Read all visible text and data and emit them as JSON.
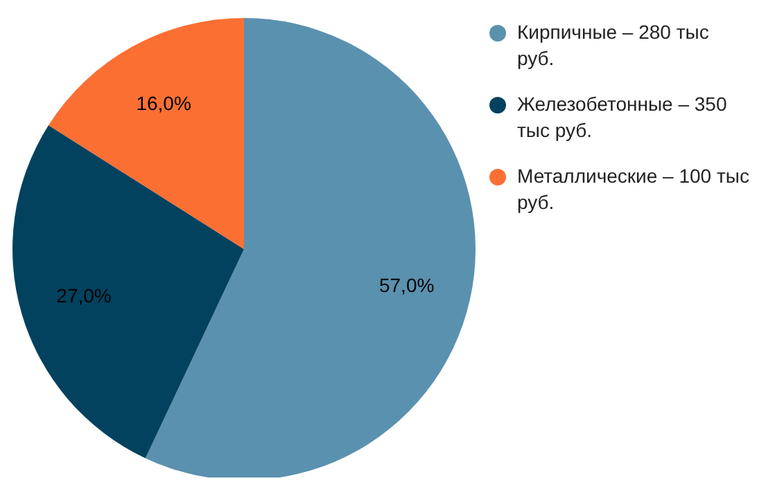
{
  "chart_data": {
    "type": "pie",
    "categories": [
      "Кирпичные – 280 тыс руб.",
      "Железобетонные – 350 тыс руб.",
      "Металлические – 100 тыс руб."
    ],
    "values": [
      57,
      27,
      16
    ],
    "colors": [
      "#5a91ae",
      "#02425e",
      "#fb6f33"
    ],
    "value_labels": [
      "57,0%",
      "27,0%",
      "16,0%"
    ],
    "legend": "right"
  }
}
